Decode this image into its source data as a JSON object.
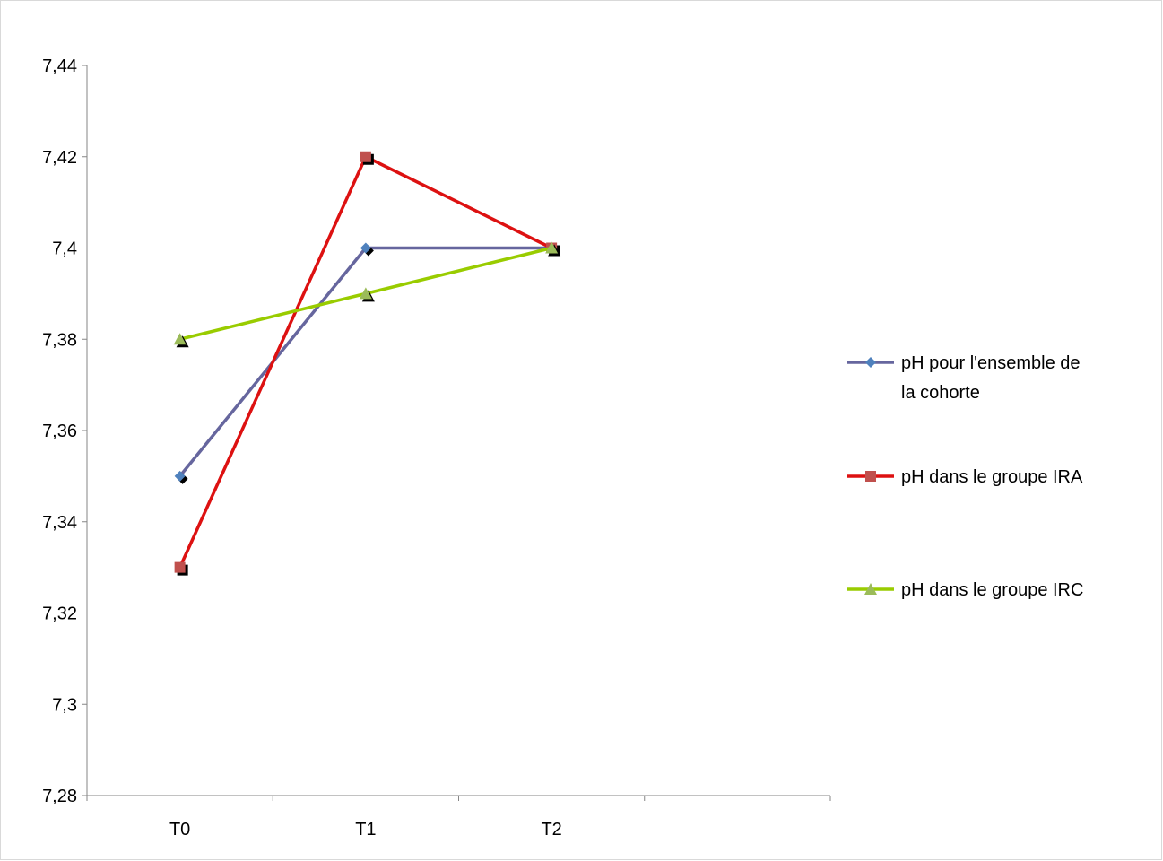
{
  "chart_data": {
    "type": "line",
    "title": "",
    "xlabel": "",
    "ylabel": "",
    "categories": [
      "T0",
      "T1",
      "T2"
    ],
    "x_axis_slots": 4,
    "ylim": [
      7.28,
      7.44
    ],
    "y_ticks": [
      "7,28",
      "7,3",
      "7,32",
      "7,34",
      "7,36",
      "7,38",
      "7,4",
      "7,42",
      "7,44"
    ],
    "grid": false,
    "legend_position": "right",
    "series": [
      {
        "name": " pH pour l'ensemble de la cohorte",
        "name_lines": [
          " pH pour l'ensemble de",
          "la cohorte"
        ],
        "values": [
          7.35,
          7.4,
          7.4
        ],
        "color": "#66669E",
        "marker": "diamond",
        "marker_color": "#4F81BD"
      },
      {
        "name": "pH dans le groupe IRA",
        "name_lines": [
          "pH dans le groupe IRA"
        ],
        "values": [
          7.33,
          7.42,
          7.4
        ],
        "color": "#DD1111",
        "marker": "square",
        "marker_color": "#C0504D"
      },
      {
        "name": "pH dans le groupe IRC",
        "name_lines": [
          "pH dans le groupe IRC"
        ],
        "values": [
          7.38,
          7.39,
          7.4
        ],
        "color": "#99CC00",
        "marker": "triangle",
        "marker_color": "#9BBB59"
      }
    ]
  }
}
